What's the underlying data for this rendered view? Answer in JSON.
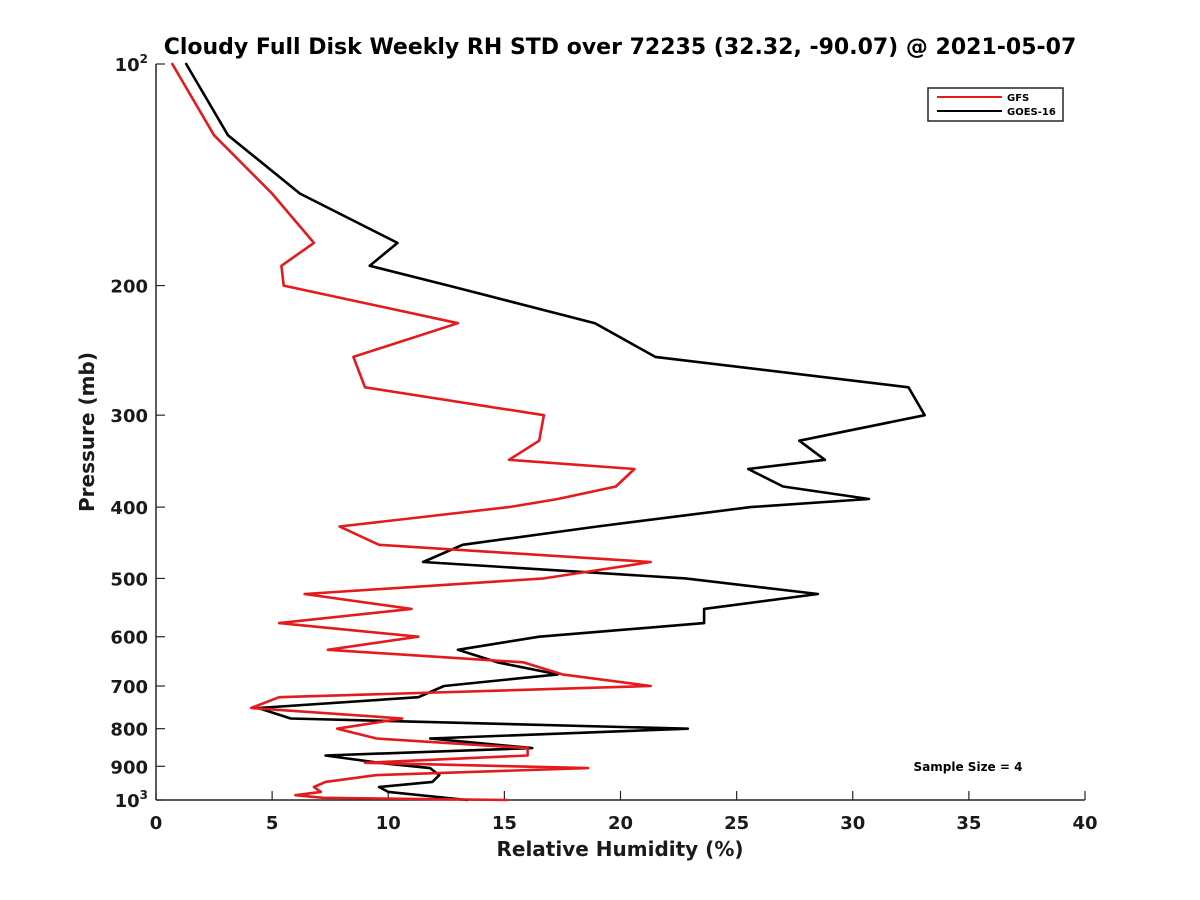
{
  "chart_data": {
    "type": "line",
    "title": "Cloudy Full Disk Weekly RH STD over 72235 (32.32, -90.07) @ 2021-05-07",
    "xlabel": "Relative Humidity (%)",
    "ylabel": "Pressure (mb)",
    "xlim": [
      0,
      40
    ],
    "ylim": [
      100,
      1000
    ],
    "y_scale": "log",
    "y_reversed": true,
    "grid": false,
    "legend_position": "top-right",
    "x_ticks": [
      "0",
      "5",
      "10",
      "15",
      "20",
      "25",
      "30",
      "35",
      "40"
    ],
    "x_tick_values": [
      0,
      5,
      10,
      15,
      20,
      25,
      30,
      35,
      40
    ],
    "y_tick_values": [
      100,
      200,
      300,
      400,
      500,
      600,
      700,
      800,
      900,
      1000
    ],
    "y_tick_labels": [
      {
        "base": "10",
        "exp": "2"
      },
      {
        "base": "200",
        "exp": ""
      },
      {
        "base": "300",
        "exp": ""
      },
      {
        "base": "400",
        "exp": ""
      },
      {
        "base": "500",
        "exp": ""
      },
      {
        "base": "600",
        "exp": ""
      },
      {
        "base": "700",
        "exp": ""
      },
      {
        "base": "800",
        "exp": ""
      },
      {
        "base": "900",
        "exp": ""
      },
      {
        "base": "10",
        "exp": "3"
      }
    ],
    "series": [
      {
        "name": "GFS",
        "color": "#e41a1c",
        "points": [
          [
            0.7,
            100
          ],
          [
            2.5,
            125
          ],
          [
            5.0,
            150
          ],
          [
            6.8,
            175
          ],
          [
            5.4,
            188
          ],
          [
            5.5,
            200
          ],
          [
            13.0,
            225
          ],
          [
            8.5,
            250
          ],
          [
            9.0,
            275
          ],
          [
            16.7,
            300
          ],
          [
            16.5,
            325
          ],
          [
            15.2,
            345
          ],
          [
            20.6,
            355
          ],
          [
            19.8,
            375
          ],
          [
            17.3,
            390
          ],
          [
            15.2,
            400
          ],
          [
            7.9,
            425
          ],
          [
            9.6,
            450
          ],
          [
            21.3,
            475
          ],
          [
            16.7,
            500
          ],
          [
            6.4,
            525
          ],
          [
            11.0,
            550
          ],
          [
            5.3,
            575
          ],
          [
            11.3,
            600
          ],
          [
            7.4,
            625
          ],
          [
            15.8,
            650
          ],
          [
            17.5,
            675
          ],
          [
            21.3,
            700
          ],
          [
            5.3,
            725
          ],
          [
            4.1,
            750
          ],
          [
            10.6,
            775
          ],
          [
            7.8,
            800
          ],
          [
            9.5,
            825
          ],
          [
            16.0,
            850
          ],
          [
            16.0,
            870
          ],
          [
            9.0,
            890
          ],
          [
            18.6,
            905
          ],
          [
            9.5,
            925
          ],
          [
            7.3,
            945
          ],
          [
            6.8,
            960
          ],
          [
            7.1,
            975
          ],
          [
            6.0,
            985
          ],
          [
            7.2,
            993
          ],
          [
            15.1,
            1000
          ]
        ]
      },
      {
        "name": "GOES-16",
        "color": "#000000",
        "points": [
          [
            1.3,
            100
          ],
          [
            3.1,
            125
          ],
          [
            6.2,
            150
          ],
          [
            10.4,
            175
          ],
          [
            9.2,
            188
          ],
          [
            12.6,
            200
          ],
          [
            18.9,
            225
          ],
          [
            21.5,
            250
          ],
          [
            32.4,
            275
          ],
          [
            33.1,
            300
          ],
          [
            27.7,
            325
          ],
          [
            28.8,
            345
          ],
          [
            25.5,
            355
          ],
          [
            27.0,
            375
          ],
          [
            30.7,
            390
          ],
          [
            25.6,
            400
          ],
          [
            19.0,
            425
          ],
          [
            13.2,
            450
          ],
          [
            11.5,
            475
          ],
          [
            22.8,
            500
          ],
          [
            28.5,
            525
          ],
          [
            23.6,
            550
          ],
          [
            23.6,
            575
          ],
          [
            16.5,
            600
          ],
          [
            13.0,
            625
          ],
          [
            14.7,
            650
          ],
          [
            17.3,
            675
          ],
          [
            12.4,
            700
          ],
          [
            11.3,
            725
          ],
          [
            4.4,
            750
          ],
          [
            5.8,
            775
          ],
          [
            22.9,
            800
          ],
          [
            11.8,
            825
          ],
          [
            16.2,
            850
          ],
          [
            7.3,
            870
          ],
          [
            9.6,
            890
          ],
          [
            11.8,
            905
          ],
          [
            12.2,
            925
          ],
          [
            11.9,
            945
          ],
          [
            9.6,
            960
          ],
          [
            10.0,
            975
          ],
          [
            13.4,
            1000
          ]
        ]
      }
    ],
    "annotation": "Sample Size = 4"
  }
}
